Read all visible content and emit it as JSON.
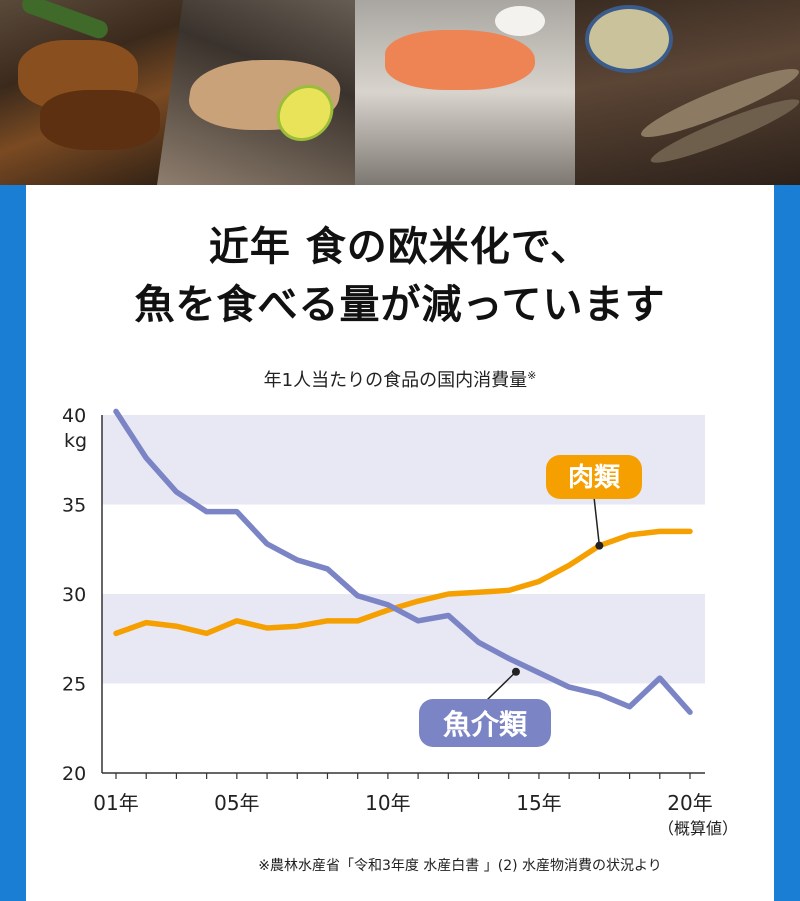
{
  "headline": {
    "line1": "近年 食の欧米化で、",
    "line2": "魚を食べる量が減っています"
  },
  "chart_data": {
    "type": "line",
    "title": "年1人当たりの食品の国内消費量",
    "title_mark": "※",
    "ylim": [
      20,
      40
    ],
    "yticks": [
      "20",
      "25",
      "30",
      "35",
      "40"
    ],
    "yunit": "kg",
    "x": [
      1,
      2,
      3,
      4,
      5,
      6,
      7,
      8,
      9,
      10,
      11,
      12,
      13,
      14,
      15,
      16,
      17,
      18,
      19,
      20
    ],
    "xticks": [
      {
        "x": 1,
        "label": "01年"
      },
      {
        "x": 5,
        "label": "05年"
      },
      {
        "x": 10,
        "label": "10年"
      },
      {
        "x": 15,
        "label": "15年"
      },
      {
        "x": 20,
        "label": "20年"
      }
    ],
    "xnote": "（概算値）",
    "grid_bands": true,
    "series": [
      {
        "name": "肉類",
        "color": "#f5a000",
        "values": [
          27.8,
          28.4,
          28.2,
          27.8,
          28.5,
          28.1,
          28.2,
          28.5,
          28.5,
          29.1,
          29.6,
          30.0,
          30.1,
          30.2,
          30.7,
          31.6,
          32.7,
          33.3,
          33.5,
          33.5
        ]
      },
      {
        "name": "魚介類",
        "color": "#7b84c4",
        "values": [
          40.2,
          37.6,
          35.7,
          34.6,
          34.6,
          32.8,
          31.9,
          31.4,
          29.9,
          29.4,
          28.5,
          28.8,
          27.3,
          26.4,
          25.6,
          24.8,
          24.4,
          23.7,
          25.3,
          23.4
        ]
      }
    ]
  },
  "source_note": "※農林水産省「令和3年度 水産白書 」(2) 水産物消費の状況より"
}
